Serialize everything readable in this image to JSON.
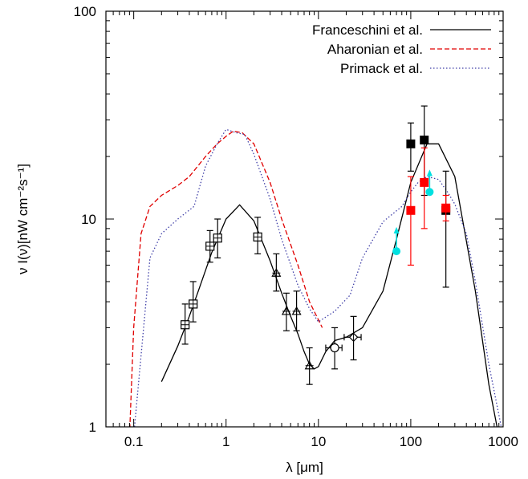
{
  "chart_data": {
    "type": "line",
    "xlabel": "λ [μm]",
    "ylabel": "ν I(ν)[nW cm⁻²s⁻¹]",
    "x_scale": "log",
    "y_scale": "log",
    "xlim": [
      0.05,
      1000
    ],
    "ylim": [
      1,
      100
    ],
    "x_ticks": [
      {
        "value": 0.1,
        "label": "0.1"
      },
      {
        "value": 1,
        "label": "1"
      },
      {
        "value": 10,
        "label": "10"
      },
      {
        "value": 100,
        "label": "100"
      },
      {
        "value": 1000,
        "label": "1000"
      }
    ],
    "y_ticks": [
      {
        "value": 1,
        "label": "1"
      },
      {
        "value": 10,
        "label": "10"
      },
      {
        "value": 100,
        "label": "100"
      }
    ],
    "grid": false,
    "legend_position": "top-right",
    "series": [
      {
        "name": "Franceschini et al.",
        "color": "#000000",
        "style": "solid",
        "x": [
          0.2,
          0.3,
          0.4,
          0.5,
          0.7,
          1.0,
          1.4,
          2.0,
          3.0,
          4.0,
          5.0,
          6.0,
          7.0,
          8.0,
          9.0,
          10,
          12,
          15,
          20,
          30,
          50,
          70,
          100,
          150,
          200,
          300,
          500,
          700,
          900
        ],
        "y": [
          1.65,
          2.45,
          3.4,
          4.5,
          6.9,
          10.0,
          11.7,
          9.8,
          6.3,
          4.4,
          3.4,
          2.8,
          2.3,
          2.0,
          1.9,
          1.95,
          2.3,
          2.6,
          2.7,
          3.0,
          4.5,
          8.0,
          15.0,
          23.0,
          23.0,
          16.0,
          4.5,
          1.6,
          0.9
        ]
      },
      {
        "name": "Aharonian et al.",
        "color": "#e00000",
        "style": "dashed",
        "x": [
          0.09,
          0.1,
          0.12,
          0.15,
          0.2,
          0.3,
          0.4,
          0.6,
          0.8,
          1.0,
          1.2,
          1.5,
          2.0,
          3.0,
          4.0,
          6.0,
          8.0,
          11
        ],
        "y": [
          0.9,
          3.0,
          8.5,
          11.5,
          13.0,
          14.5,
          16.0,
          20.0,
          23.0,
          25.0,
          26.5,
          26.0,
          23.0,
          15.0,
          10.0,
          6.0,
          4.0,
          3.0
        ]
      },
      {
        "name": "Primack et al.",
        "color": "#4040a8",
        "style": "dotted",
        "x": [
          0.1,
          0.15,
          0.2,
          0.3,
          0.45,
          0.6,
          0.8,
          1.0,
          1.3,
          1.6,
          2.0,
          3.0,
          4.0,
          6.0,
          8.0,
          10,
          15,
          22,
          30,
          50,
          80,
          100,
          120,
          150,
          200,
          250,
          300,
          400,
          500,
          700,
          1000
        ],
        "y": [
          0.9,
          6.5,
          8.5,
          10.0,
          11.5,
          18.0,
          23.0,
          27.0,
          26.0,
          25.5,
          20.5,
          12.5,
          8.0,
          4.8,
          3.7,
          3.2,
          3.6,
          4.3,
          6.5,
          9.7,
          11.5,
          13.5,
          15.0,
          16.0,
          15.5,
          13.5,
          11.8,
          8.5,
          5.0,
          2.0,
          0.9
        ]
      }
    ],
    "observations": [
      {
        "marker": "square-plus",
        "color": "#000000",
        "points": [
          {
            "x": 0.36,
            "y": 3.1,
            "ylo": 2.5,
            "yhi": 3.9
          },
          {
            "x": 0.44,
            "y": 3.9,
            "ylo": 3.2,
            "yhi": 5.0
          },
          {
            "x": 0.67,
            "y": 7.4,
            "ylo": 6.2,
            "yhi": 8.8
          },
          {
            "x": 0.81,
            "y": 8.1,
            "ylo": 6.5,
            "yhi": 10.0
          },
          {
            "x": 2.2,
            "y": 8.2,
            "ylo": 6.8,
            "yhi": 10.2
          }
        ]
      },
      {
        "marker": "triangle",
        "color": "#000000",
        "points": [
          {
            "x": 3.5,
            "y": 5.5,
            "ylo": 4.5,
            "yhi": 6.8
          },
          {
            "x": 4.5,
            "y": 3.6,
            "ylo": 2.9,
            "yhi": 4.4
          },
          {
            "x": 5.8,
            "y": 3.6,
            "ylo": 2.9,
            "yhi": 4.5
          },
          {
            "x": 8.0,
            "y": 1.97,
            "ylo": 1.6,
            "yhi": 2.4
          }
        ]
      },
      {
        "marker": "circle",
        "color": "#000000",
        "points": [
          {
            "x": 15,
            "y": 2.4,
            "ylo": 1.9,
            "yhi": 3.0,
            "xlo": 12,
            "xhi": 18
          }
        ]
      },
      {
        "marker": "diamond",
        "color": "#000000",
        "points": [
          {
            "x": 24,
            "y": 2.7,
            "ylo": 2.1,
            "yhi": 3.4,
            "xlo": 19,
            "xhi": 29
          }
        ]
      },
      {
        "marker": "filled-square",
        "color": "#000000",
        "points": [
          {
            "x": 100,
            "y": 23.0,
            "ylo": 17.0,
            "yhi": 29.0
          },
          {
            "x": 140,
            "y": 24.0,
            "ylo": 13.0,
            "yhi": 35.0
          },
          {
            "x": 240,
            "y": 11.0,
            "ylo": 4.7,
            "yhi": 17.0
          }
        ]
      },
      {
        "marker": "filled-square",
        "color": "#ff0000",
        "points": [
          {
            "x": 100,
            "y": 11.0,
            "ylo": 6.0,
            "yhi": 16.0
          },
          {
            "x": 140,
            "y": 15.0,
            "ylo": 9.0,
            "yhi": 22.0
          },
          {
            "x": 240,
            "y": 11.3,
            "ylo": 9.8,
            "yhi": 13.0
          }
        ]
      },
      {
        "marker": "filled-circle-arrow",
        "color": "#00e0e0",
        "points": [
          {
            "x": 70,
            "y": 7.0,
            "arrow_to": 9.0
          },
          {
            "x": 160,
            "y": 13.5,
            "arrow_to": 17.0
          }
        ]
      }
    ]
  }
}
